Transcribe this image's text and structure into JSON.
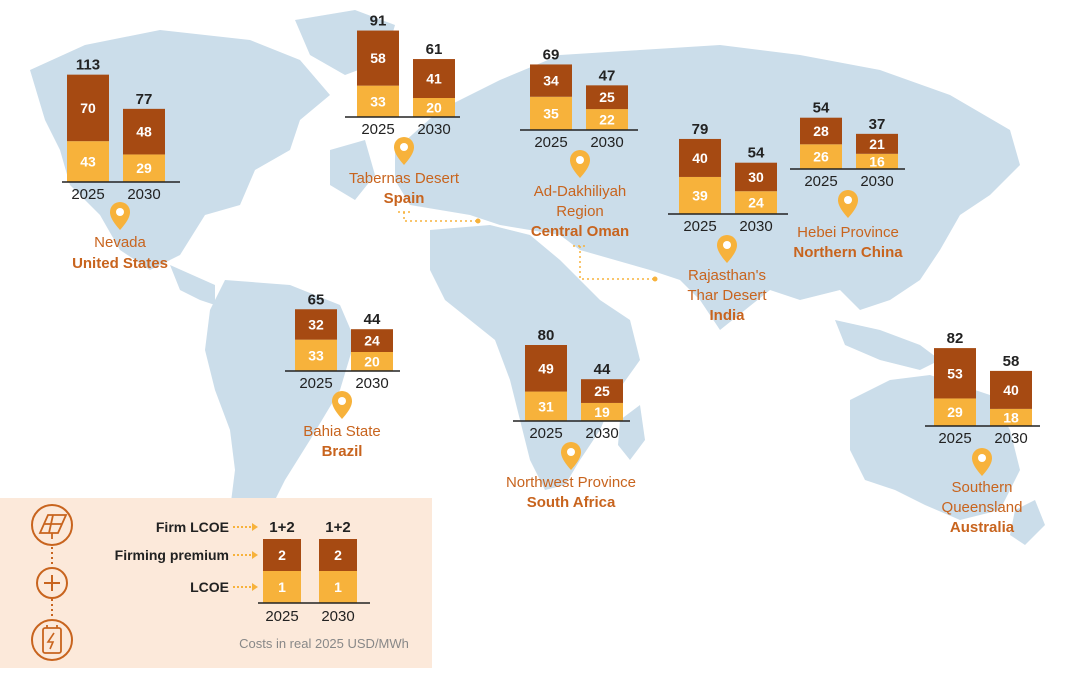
{
  "colors": {
    "firming": "#A64A12",
    "lcoe": "#F7B23B",
    "label_orange": "#C8641E",
    "land": "#CBDDEA",
    "legend_bg": "#FCE9DA",
    "axis": "#222222",
    "text": "#222222",
    "note": "#888888",
    "pin": "#F7B23B"
  },
  "chart_data": {
    "type": "bar",
    "stacked": true,
    "unit": "real 2025 USD/MWh",
    "categories": [
      "2025",
      "2030"
    ],
    "series_names": [
      "LCOE",
      "Firming premium"
    ],
    "regions": [
      {
        "id": "us",
        "place": "Nevada",
        "country": "United States",
        "lcoe": [
          43,
          29
        ],
        "firming": [
          70,
          48
        ],
        "total": [
          113,
          77
        ]
      },
      {
        "id": "spain",
        "place": "Tabernas Desert",
        "country": "Spain",
        "lcoe": [
          33,
          20
        ],
        "firming": [
          58,
          41
        ],
        "total": [
          91,
          61
        ]
      },
      {
        "id": "oman",
        "place": "Ad-Dakhiliyah\nRegion",
        "country": "Central Oman",
        "lcoe": [
          35,
          22
        ],
        "firming": [
          34,
          25
        ],
        "total": [
          69,
          47
        ]
      },
      {
        "id": "india",
        "place": "Rajasthan's\nThar Desert",
        "country": "India",
        "lcoe": [
          39,
          24
        ],
        "firming": [
          40,
          30
        ],
        "total": [
          79,
          54
        ]
      },
      {
        "id": "china",
        "place": "Hebei Province",
        "country": "Northern China",
        "lcoe": [
          26,
          16
        ],
        "firming": [
          28,
          21
        ],
        "total": [
          54,
          37
        ]
      },
      {
        "id": "brazil",
        "place": "Bahia State",
        "country": "Brazil",
        "lcoe": [
          33,
          20
        ],
        "firming": [
          32,
          24
        ],
        "total": [
          65,
          44
        ]
      },
      {
        "id": "safrica",
        "place": "Northwest Province",
        "country": "South Africa",
        "lcoe": [
          31,
          19
        ],
        "firming": [
          49,
          25
        ],
        "total": [
          80,
          44
        ]
      },
      {
        "id": "aus",
        "place": "Southern\nQueensland",
        "country": "Australia",
        "lcoe": [
          29,
          18
        ],
        "firming": [
          53,
          40
        ],
        "total": [
          82,
          58
        ]
      }
    ],
    "legend": {
      "labels": {
        "firm": "Firm LCOE",
        "premium": "Firming premium",
        "lcoe": "LCOE"
      },
      "sample_top": "1+2",
      "sample_firming": "2",
      "sample_lcoe": "1",
      "categories": [
        "2025",
        "2030"
      ],
      "note": "Costs in real 2025 USD/MWh"
    }
  }
}
